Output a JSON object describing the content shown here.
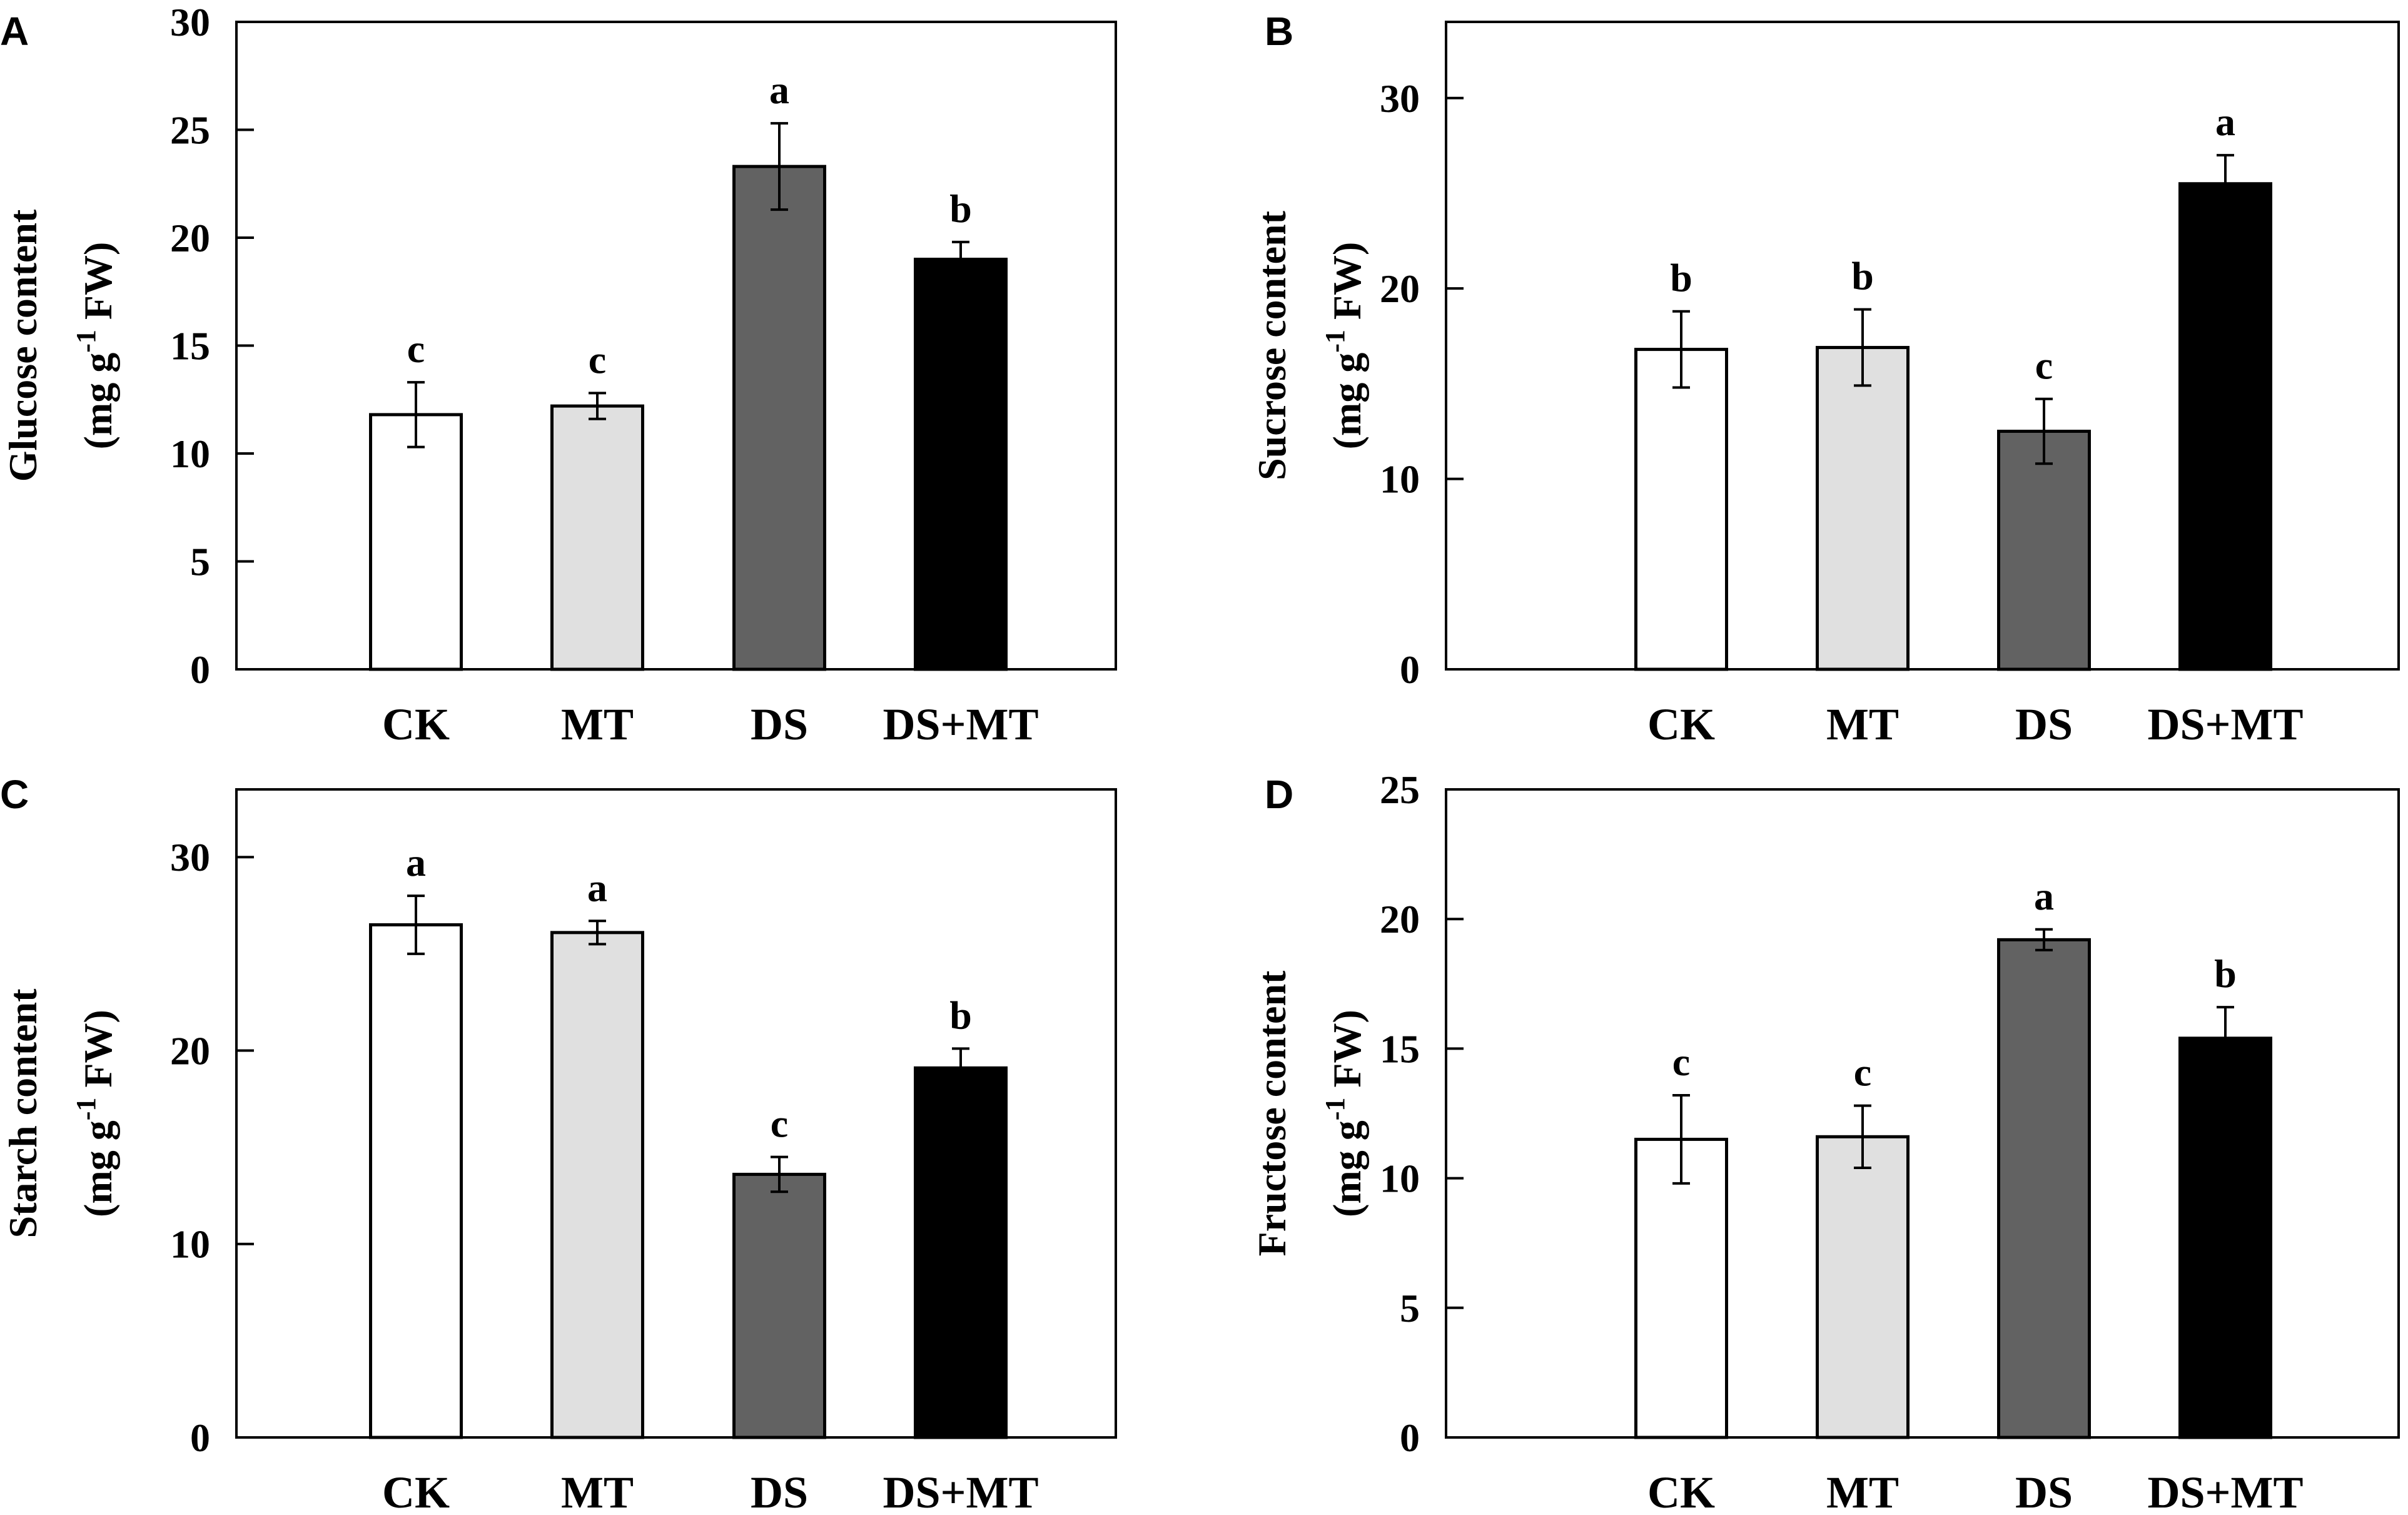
{
  "chart_data": [
    {
      "type": "bar",
      "panel_label": "A",
      "categories": [
        "CK",
        "MT",
        "DS",
        "DS+MT"
      ],
      "values": [
        11.8,
        12.2,
        23.3,
        19.0
      ],
      "errors": [
        1.5,
        0.6,
        2.0,
        0.8
      ],
      "significance": [
        "c",
        "c",
        "a",
        "b"
      ],
      "bar_colors": [
        "#ffffff",
        "#e0e0e0",
        "#626262",
        "#000000"
      ],
      "ylabel_line1": "Glucose content",
      "ylabel_prefix": "(mg g",
      "ylabel_sup": "-1",
      "ylabel_suffix": " FW)",
      "ylim": [
        0,
        30
      ],
      "yticks": [
        "0",
        "5",
        "10",
        "15",
        "20",
        "25",
        "30"
      ]
    },
    {
      "type": "bar",
      "panel_label": "B",
      "categories": [
        "CK",
        "MT",
        "DS",
        "DS+MT"
      ],
      "values": [
        16.8,
        16.9,
        12.5,
        25.5
      ],
      "errors": [
        2.0,
        2.0,
        1.7,
        1.5
      ],
      "significance": [
        "b",
        "b",
        "c",
        "a"
      ],
      "bar_colors": [
        "#ffffff",
        "#e0e0e0",
        "#626262",
        "#000000"
      ],
      "ylabel_line1": "Sucrose content",
      "ylabel_prefix": "(mg g",
      "ylabel_sup": "-1",
      "ylabel_suffix": " FW)",
      "ylim": [
        0,
        34
      ],
      "yticks": [
        "0",
        "10",
        "20",
        "30"
      ]
    },
    {
      "type": "bar",
      "panel_label": "C",
      "categories": [
        "CK",
        "MT",
        "DS",
        "DS+MT"
      ],
      "values": [
        26.5,
        26.1,
        13.6,
        19.1
      ],
      "errors": [
        1.5,
        0.6,
        0.9,
        1.0
      ],
      "significance": [
        "a",
        "a",
        "c",
        "b"
      ],
      "bar_colors": [
        "#ffffff",
        "#e0e0e0",
        "#626262",
        "#000000"
      ],
      "ylabel_line1": "Starch content",
      "ylabel_prefix": "(mg g",
      "ylabel_sup": "-1",
      "ylabel_suffix": " FW)",
      "ylim": [
        0,
        33.5
      ],
      "yticks": [
        "0",
        "10",
        "20",
        "30"
      ]
    },
    {
      "type": "bar",
      "panel_label": "D",
      "categories": [
        "CK",
        "MT",
        "DS",
        "DS+MT"
      ],
      "values": [
        11.5,
        11.6,
        19.2,
        15.4
      ],
      "errors": [
        1.7,
        1.2,
        0.4,
        1.2
      ],
      "significance": [
        "c",
        "c",
        "a",
        "b"
      ],
      "bar_colors": [
        "#ffffff",
        "#e0e0e0",
        "#626262",
        "#000000"
      ],
      "ylabel_line1": "Fructose content",
      "ylabel_prefix": "(mg g",
      "ylabel_sup": "-1",
      "ylabel_suffix": " FW)",
      "ylim": [
        0,
        25
      ],
      "yticks": [
        "0",
        "5",
        "10",
        "15",
        "20",
        "25"
      ]
    }
  ]
}
